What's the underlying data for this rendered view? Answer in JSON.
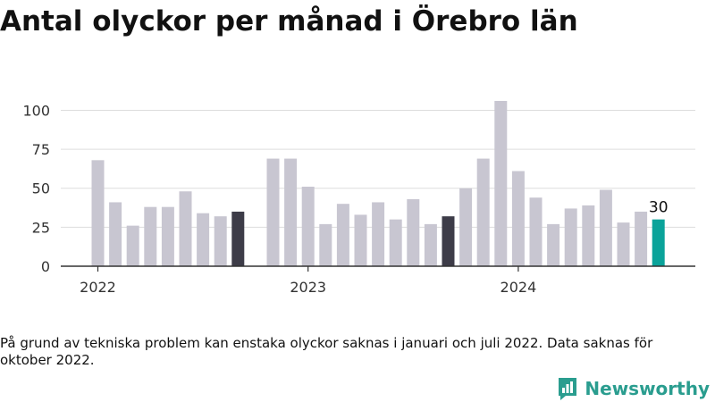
{
  "title": "Antal olyckor per månad i Örebro län",
  "footnote": "På grund av tekniska problem kan enstaka olyckor saknas i januari och juli 2022. Data saknas för oktober 2022.",
  "brand": {
    "name": "Newsworthy",
    "icon": "bar-chart-logo-icon"
  },
  "chart_data": {
    "type": "bar",
    "ylim": [
      0,
      110
    ],
    "yticks": [
      0,
      25,
      50,
      75,
      100
    ],
    "grid": true,
    "colors": {
      "default": "#c8c6d1",
      "highlight": "#3d3c48",
      "latest": "#0aa39a"
    },
    "x_tick_labels": [
      {
        "label": "2022",
        "at": "2022-01"
      },
      {
        "label": "2023",
        "at": "2023-01"
      },
      {
        "label": "2024",
        "at": "2024-01"
      }
    ],
    "bars": [
      {
        "month": "2022-01",
        "value": 68,
        "color": "default"
      },
      {
        "month": "2022-02",
        "value": 41,
        "color": "default"
      },
      {
        "month": "2022-03",
        "value": 26,
        "color": "default"
      },
      {
        "month": "2022-04",
        "value": 38,
        "color": "default"
      },
      {
        "month": "2022-05",
        "value": 38,
        "color": "default"
      },
      {
        "month": "2022-06",
        "value": 48,
        "color": "default"
      },
      {
        "month": "2022-07",
        "value": 34,
        "color": "default"
      },
      {
        "month": "2022-08",
        "value": 32,
        "color": "default"
      },
      {
        "month": "2022-09",
        "value": 35,
        "color": "highlight"
      },
      {
        "month": "2022-10",
        "value": null,
        "color": "default"
      },
      {
        "month": "2022-11",
        "value": 69,
        "color": "default"
      },
      {
        "month": "2022-12",
        "value": 69,
        "color": "default"
      },
      {
        "month": "2023-01",
        "value": 51,
        "color": "default"
      },
      {
        "month": "2023-02",
        "value": 27,
        "color": "default"
      },
      {
        "month": "2023-03",
        "value": 40,
        "color": "default"
      },
      {
        "month": "2023-04",
        "value": 33,
        "color": "default"
      },
      {
        "month": "2023-05",
        "value": 41,
        "color": "default"
      },
      {
        "month": "2023-06",
        "value": 30,
        "color": "default"
      },
      {
        "month": "2023-07",
        "value": 43,
        "color": "default"
      },
      {
        "month": "2023-08",
        "value": 27,
        "color": "default"
      },
      {
        "month": "2023-09",
        "value": 32,
        "color": "highlight"
      },
      {
        "month": "2023-10",
        "value": 50,
        "color": "default"
      },
      {
        "month": "2023-11",
        "value": 69,
        "color": "default"
      },
      {
        "month": "2023-12",
        "value": 106,
        "color": "default"
      },
      {
        "month": "2024-01",
        "value": 61,
        "color": "default"
      },
      {
        "month": "2024-02",
        "value": 44,
        "color": "default"
      },
      {
        "month": "2024-03",
        "value": 27,
        "color": "default"
      },
      {
        "month": "2024-04",
        "value": 37,
        "color": "default"
      },
      {
        "month": "2024-05",
        "value": 39,
        "color": "default"
      },
      {
        "month": "2024-06",
        "value": 49,
        "color": "default"
      },
      {
        "month": "2024-07",
        "value": 28,
        "color": "default"
      },
      {
        "month": "2024-08",
        "value": 35,
        "color": "default"
      },
      {
        "month": "2024-09",
        "value": 30,
        "color": "latest",
        "label": "30"
      }
    ]
  }
}
